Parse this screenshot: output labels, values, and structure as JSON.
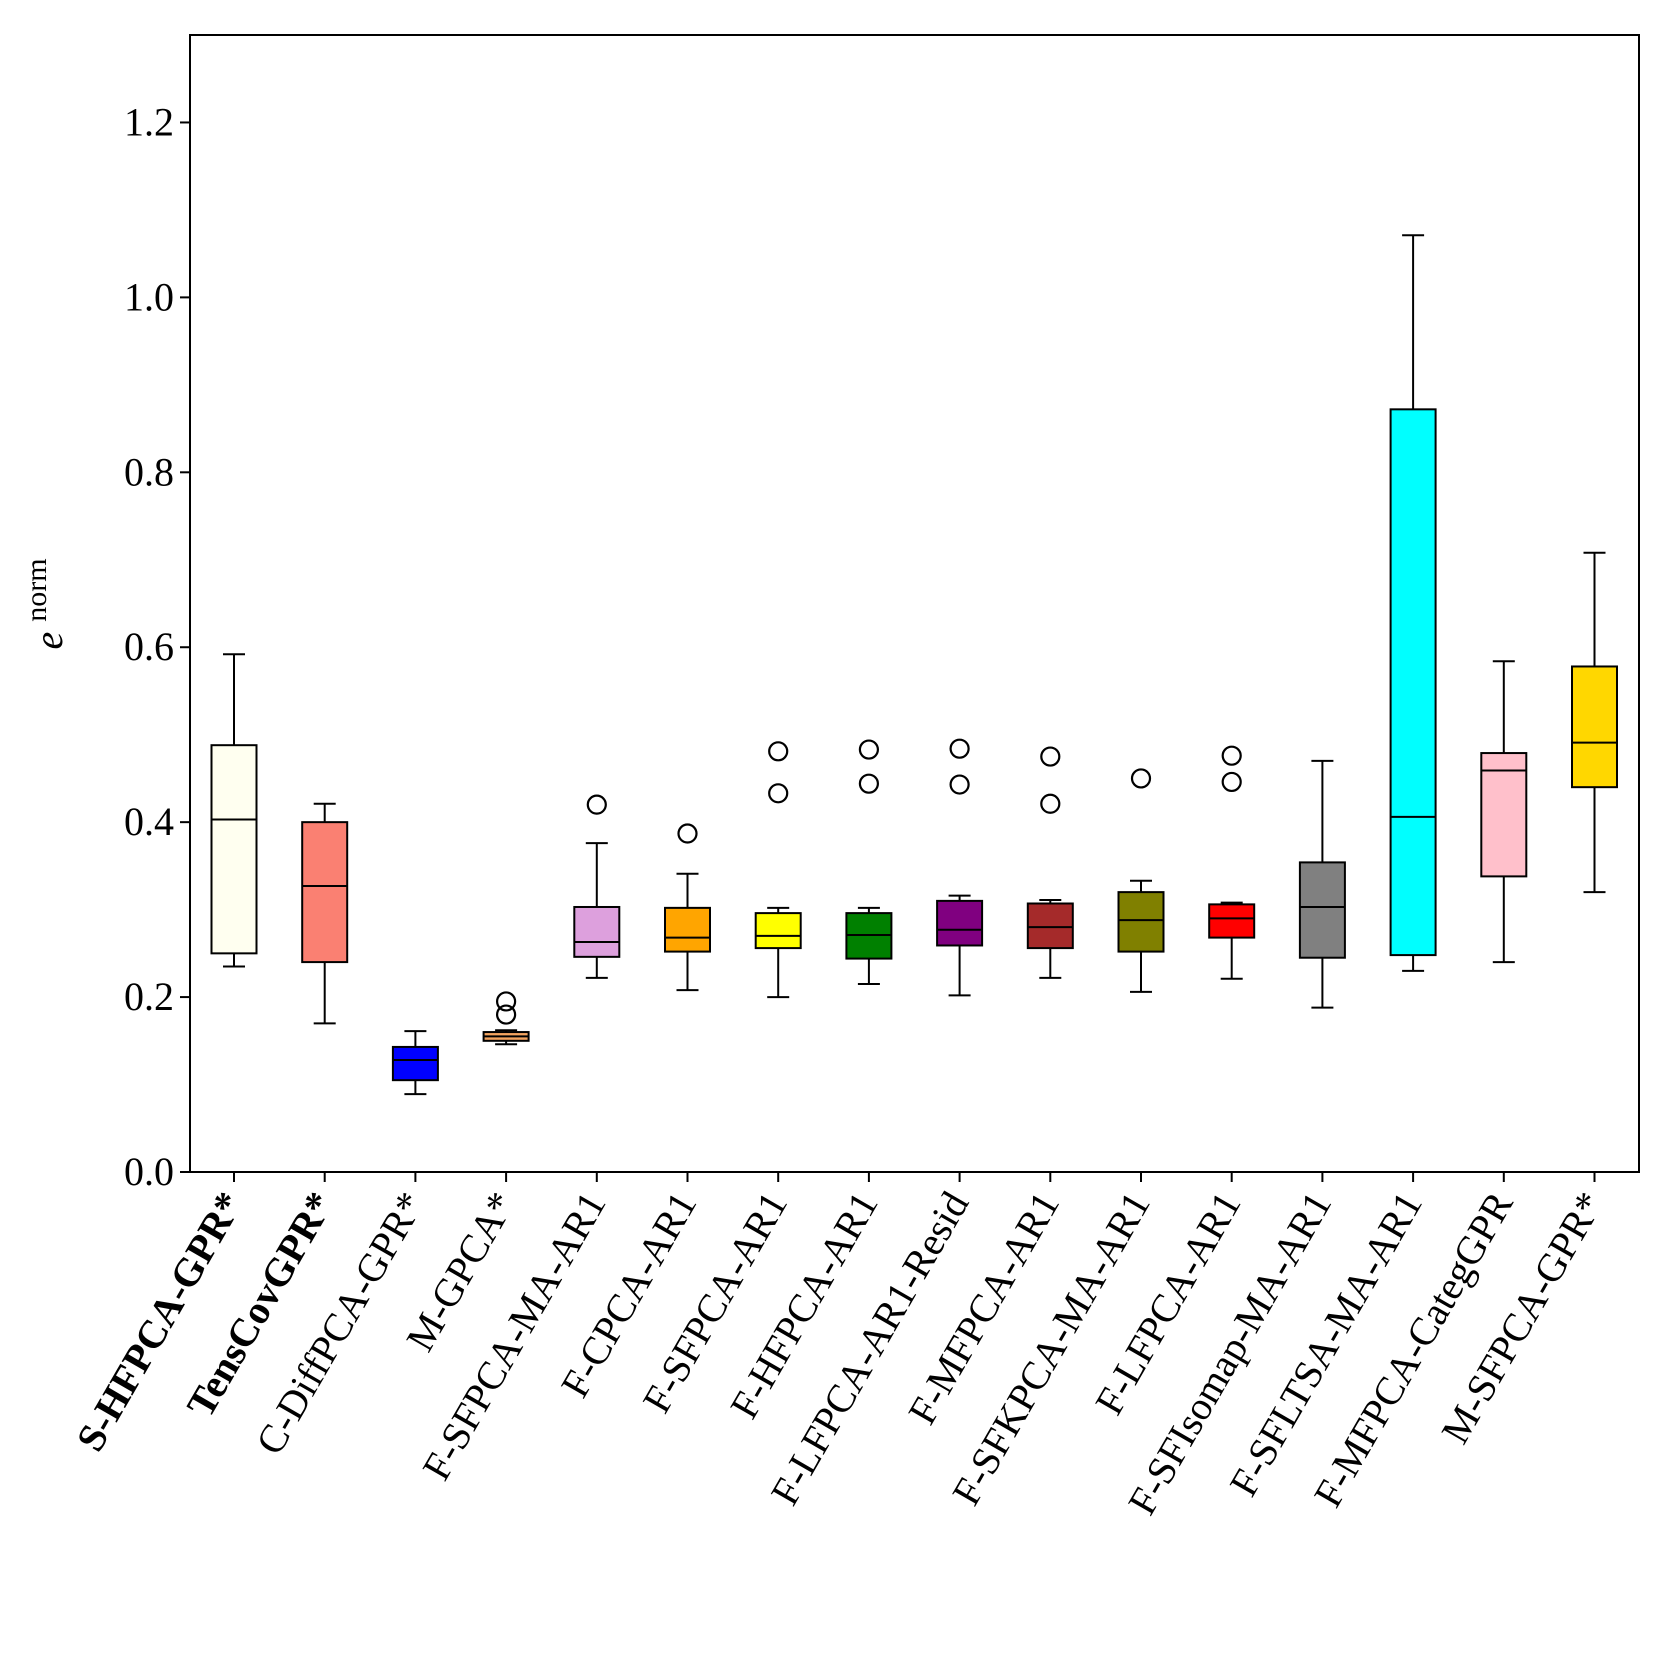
{
  "chart_data": {
    "type": "boxplot",
    "ylabel": {
      "base": "e",
      "superscript": "norm"
    },
    "xlabel": "",
    "ylim": [
      0.0,
      1.3
    ],
    "yticks": [
      0.0,
      0.2,
      0.4,
      0.6,
      0.8,
      1.0,
      1.2
    ],
    "ytick_labels": [
      "0.0",
      "0.2",
      "0.4",
      "0.6",
      "0.8",
      "1.0",
      "1.2"
    ],
    "grid": false,
    "legend": "none",
    "categories": [
      {
        "label": "S-HFPCA-GPR*",
        "bold": true,
        "color": "#FFFFF0",
        "whisker_low": 0.235,
        "q1": 0.25,
        "median": 0.403,
        "q3": 0.488,
        "whisker_high": 0.592,
        "outliers": []
      },
      {
        "label": "TensCovGPR*",
        "bold": true,
        "color": "#FA8072",
        "whisker_low": 0.17,
        "q1": 0.24,
        "median": 0.327,
        "q3": 0.4,
        "whisker_high": 0.421,
        "outliers": []
      },
      {
        "label": "C-DiffPCA-GPR*",
        "bold": false,
        "color": "#0000FF",
        "whisker_low": 0.089,
        "q1": 0.105,
        "median": 0.128,
        "q3": 0.143,
        "whisker_high": 0.161,
        "outliers": []
      },
      {
        "label": "M-GPCA*",
        "bold": false,
        "color": "#F4A460",
        "whisker_low": 0.146,
        "q1": 0.15,
        "median": 0.155,
        "q3": 0.16,
        "whisker_high": 0.162,
        "outliers": [
          0.18,
          0.195
        ]
      },
      {
        "label": "F-SFPCA-MA-AR1",
        "bold": false,
        "color": "#DDA0DD",
        "whisker_low": 0.222,
        "q1": 0.246,
        "median": 0.263,
        "q3": 0.303,
        "whisker_high": 0.376,
        "outliers": [
          0.42
        ]
      },
      {
        "label": "F-CPCA-AR1",
        "bold": false,
        "color": "#FFA500",
        "whisker_low": 0.208,
        "q1": 0.252,
        "median": 0.268,
        "q3": 0.302,
        "whisker_high": 0.341,
        "outliers": [
          0.387
        ]
      },
      {
        "label": "F-SFPCA-AR1",
        "bold": false,
        "color": "#FFFF00",
        "whisker_low": 0.2,
        "q1": 0.256,
        "median": 0.27,
        "q3": 0.296,
        "whisker_high": 0.302,
        "outliers": [
          0.433,
          0.481
        ]
      },
      {
        "label": "F-HFPCA-AR1",
        "bold": false,
        "color": "#008000",
        "whisker_low": 0.215,
        "q1": 0.244,
        "median": 0.271,
        "q3": 0.296,
        "whisker_high": 0.302,
        "outliers": [
          0.444,
          0.483
        ]
      },
      {
        "label": "F-LFPCA-AR1-Resid",
        "bold": false,
        "color": "#800080",
        "whisker_low": 0.202,
        "q1": 0.259,
        "median": 0.277,
        "q3": 0.31,
        "whisker_high": 0.316,
        "outliers": [
          0.443,
          0.484
        ]
      },
      {
        "label": "F-MFPCA-AR1",
        "bold": false,
        "color": "#A52A2A",
        "whisker_low": 0.222,
        "q1": 0.256,
        "median": 0.28,
        "q3": 0.307,
        "whisker_high": 0.311,
        "outliers": [
          0.421,
          0.475
        ]
      },
      {
        "label": "F-SFKPCA-MA-AR1",
        "bold": false,
        "color": "#808000",
        "whisker_low": 0.206,
        "q1": 0.252,
        "median": 0.288,
        "q3": 0.32,
        "whisker_high": 0.333,
        "outliers": [
          0.45
        ]
      },
      {
        "label": "F-LFPCA-AR1",
        "bold": false,
        "color": "#FF0000",
        "whisker_low": 0.221,
        "q1": 0.268,
        "median": 0.29,
        "q3": 0.306,
        "whisker_high": 0.308,
        "outliers": [
          0.446,
          0.476
        ]
      },
      {
        "label": "F-SFIsomap-MA-AR1",
        "bold": false,
        "color": "#808080",
        "whisker_low": 0.188,
        "q1": 0.245,
        "median": 0.303,
        "q3": 0.354,
        "whisker_high": 0.47,
        "outliers": []
      },
      {
        "label": "F-SFLTSA-MA-AR1",
        "bold": false,
        "color": "#00FFFF",
        "whisker_low": 0.23,
        "q1": 0.248,
        "median": 0.406,
        "q3": 0.872,
        "whisker_high": 1.071,
        "outliers": []
      },
      {
        "label": "F-MFPCA-CategGPR",
        "bold": false,
        "color": "#FFC0CB",
        "whisker_low": 0.24,
        "q1": 0.338,
        "median": 0.459,
        "q3": 0.479,
        "whisker_high": 0.584,
        "outliers": []
      },
      {
        "label": "M-SFPCA-GPR*",
        "bold": false,
        "color": "#FFD700",
        "whisker_low": 0.32,
        "q1": 0.44,
        "median": 0.491,
        "q3": 0.578,
        "whisker_high": 0.708,
        "outliers": []
      }
    ]
  }
}
